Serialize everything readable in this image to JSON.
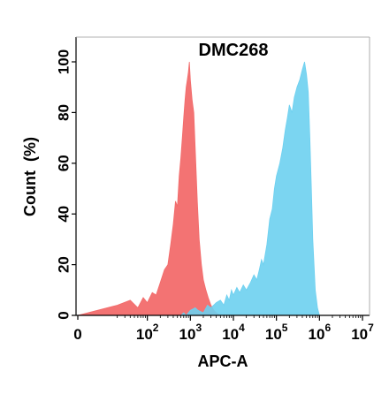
{
  "chart_data": {
    "type": "area",
    "title": "DMC268",
    "xlabel": "APC-A",
    "ylabel": "Count  (%)",
    "x_scale": "log",
    "xlim": [
      0,
      10000000
    ],
    "ylim": [
      0,
      100
    ],
    "x_ticks": [
      {
        "value": 0,
        "base": "0",
        "exp": ""
      },
      {
        "value": 100,
        "base": "10",
        "exp": "2"
      },
      {
        "value": 1000,
        "base": "10",
        "exp": "3"
      },
      {
        "value": 10000,
        "base": "10",
        "exp": "4"
      },
      {
        "value": 100000,
        "base": "10",
        "exp": "5"
      },
      {
        "value": 1000000,
        "base": "10",
        "exp": "6"
      },
      {
        "value": 10000000,
        "base": "10",
        "exp": "7"
      }
    ],
    "y_ticks": [
      0,
      20,
      40,
      60,
      80,
      100
    ],
    "grid": false,
    "legend": "none",
    "series": [
      {
        "color": "#f26b6b",
        "x": [
          0,
          20,
          40,
          60,
          80,
          100,
          130,
          160,
          200,
          250,
          300,
          350,
          400,
          450,
          500,
          550,
          600,
          650,
          700,
          750,
          800,
          850,
          900,
          950,
          1000,
          1100,
          1200,
          1300,
          1450,
          1600,
          1800,
          2000,
          2300,
          2600,
          3000,
          3500,
          4000,
          5000
        ],
        "y": [
          0,
          4,
          6,
          3,
          7,
          5,
          9,
          8,
          13,
          18,
          20,
          28,
          36,
          45,
          43,
          55,
          62,
          70,
          78,
          85,
          90,
          93,
          96,
          100,
          93,
          85,
          80,
          65,
          45,
          30,
          20,
          14,
          10,
          7,
          4,
          2,
          1,
          0
        ]
      },
      {
        "color": "#6dd0f0",
        "x": [
          600,
          700,
          800,
          1000,
          1300,
          1500,
          2000,
          2500,
          3000,
          4000,
          5000,
          6000,
          7000,
          8000,
          9000,
          10000,
          12000,
          14000,
          17000,
          20000,
          25000,
          30000,
          35000,
          40000,
          45000,
          50000,
          60000,
          70000,
          80000,
          90000,
          100000,
          120000,
          140000,
          160000,
          180000,
          200000,
          230000,
          260000,
          300000,
          350000,
          400000,
          450000,
          500000,
          550000,
          600000,
          650000,
          700000,
          800000,
          900000,
          1000000
        ],
        "y": [
          0,
          1,
          0,
          2,
          3,
          2,
          1,
          4,
          3,
          5,
          6,
          4,
          8,
          6,
          10,
          8,
          11,
          9,
          12,
          10,
          13,
          16,
          14,
          18,
          22,
          20,
          28,
          38,
          42,
          50,
          55,
          60,
          66,
          73,
          78,
          83,
          80,
          86,
          90,
          93,
          97,
          100,
          95,
          88,
          70,
          50,
          30,
          10,
          3,
          0
        ]
      }
    ]
  }
}
